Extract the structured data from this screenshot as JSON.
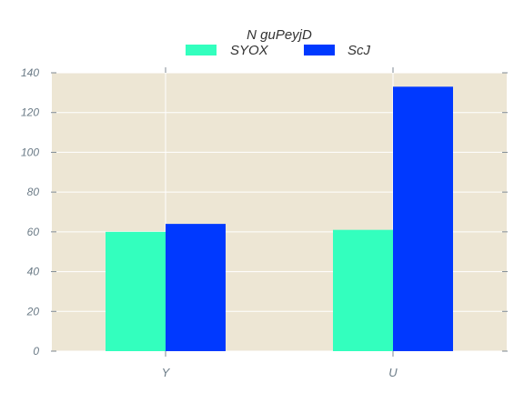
{
  "chart_data": {
    "type": "bar",
    "legend_title": "N guPeyjD",
    "legend_position": "top-center",
    "categories": [
      "Y",
      "U"
    ],
    "series": [
      {
        "name": "SYOX",
        "values": [
          60,
          61
        ],
        "color": "#33ffbe"
      },
      {
        "name": "ScJ",
        "values": [
          64,
          133
        ],
        "color": "#0039ff"
      }
    ],
    "ylim": [
      0,
      140
    ],
    "yticks": [
      0,
      20,
      40,
      60,
      80,
      100,
      120,
      140
    ],
    "grid": true,
    "background_color": "#ede6d4",
    "xlabel": "",
    "ylabel": ""
  }
}
